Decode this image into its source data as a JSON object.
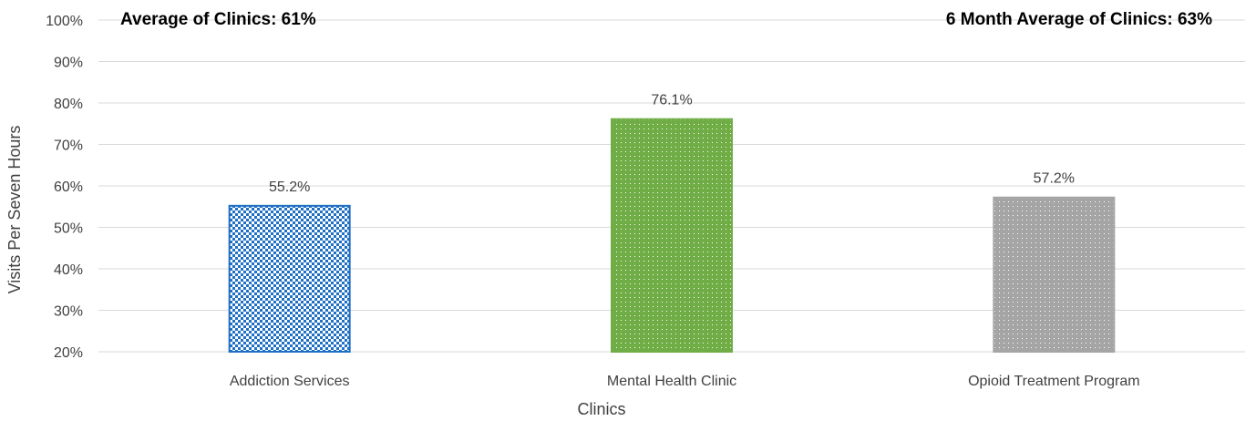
{
  "chart_data": {
    "type": "bar",
    "categories": [
      "Addiction Services",
      "Mental Health Clinic",
      "Opioid Treatment Program"
    ],
    "values": [
      55.2,
      76.1,
      57.2
    ],
    "data_labels": [
      "55.2%",
      "76.1%",
      "57.2%"
    ],
    "xlabel": "Clinics",
    "ylabel": "Visits Per Seven Hours",
    "ylim": [
      20,
      100
    ],
    "yticks": [
      20,
      30,
      40,
      50,
      60,
      70,
      80,
      90,
      100
    ],
    "ytick_labels": [
      "20%",
      "30%",
      "40%",
      "50%",
      "60%",
      "70%",
      "80%",
      "90%",
      "100%"
    ],
    "grid": true,
    "legend": "none",
    "annotations": {
      "left": "Average of Clinics: 61%",
      "right": "6 Month Average of Clinics:  63%"
    },
    "bar_styles": [
      {
        "pattern": "checkerboard",
        "color": "#1F6FC5"
      },
      {
        "pattern": "dots",
        "color": "#70AD47"
      },
      {
        "pattern": "dots",
        "color": "#A5A5A5"
      }
    ]
  }
}
